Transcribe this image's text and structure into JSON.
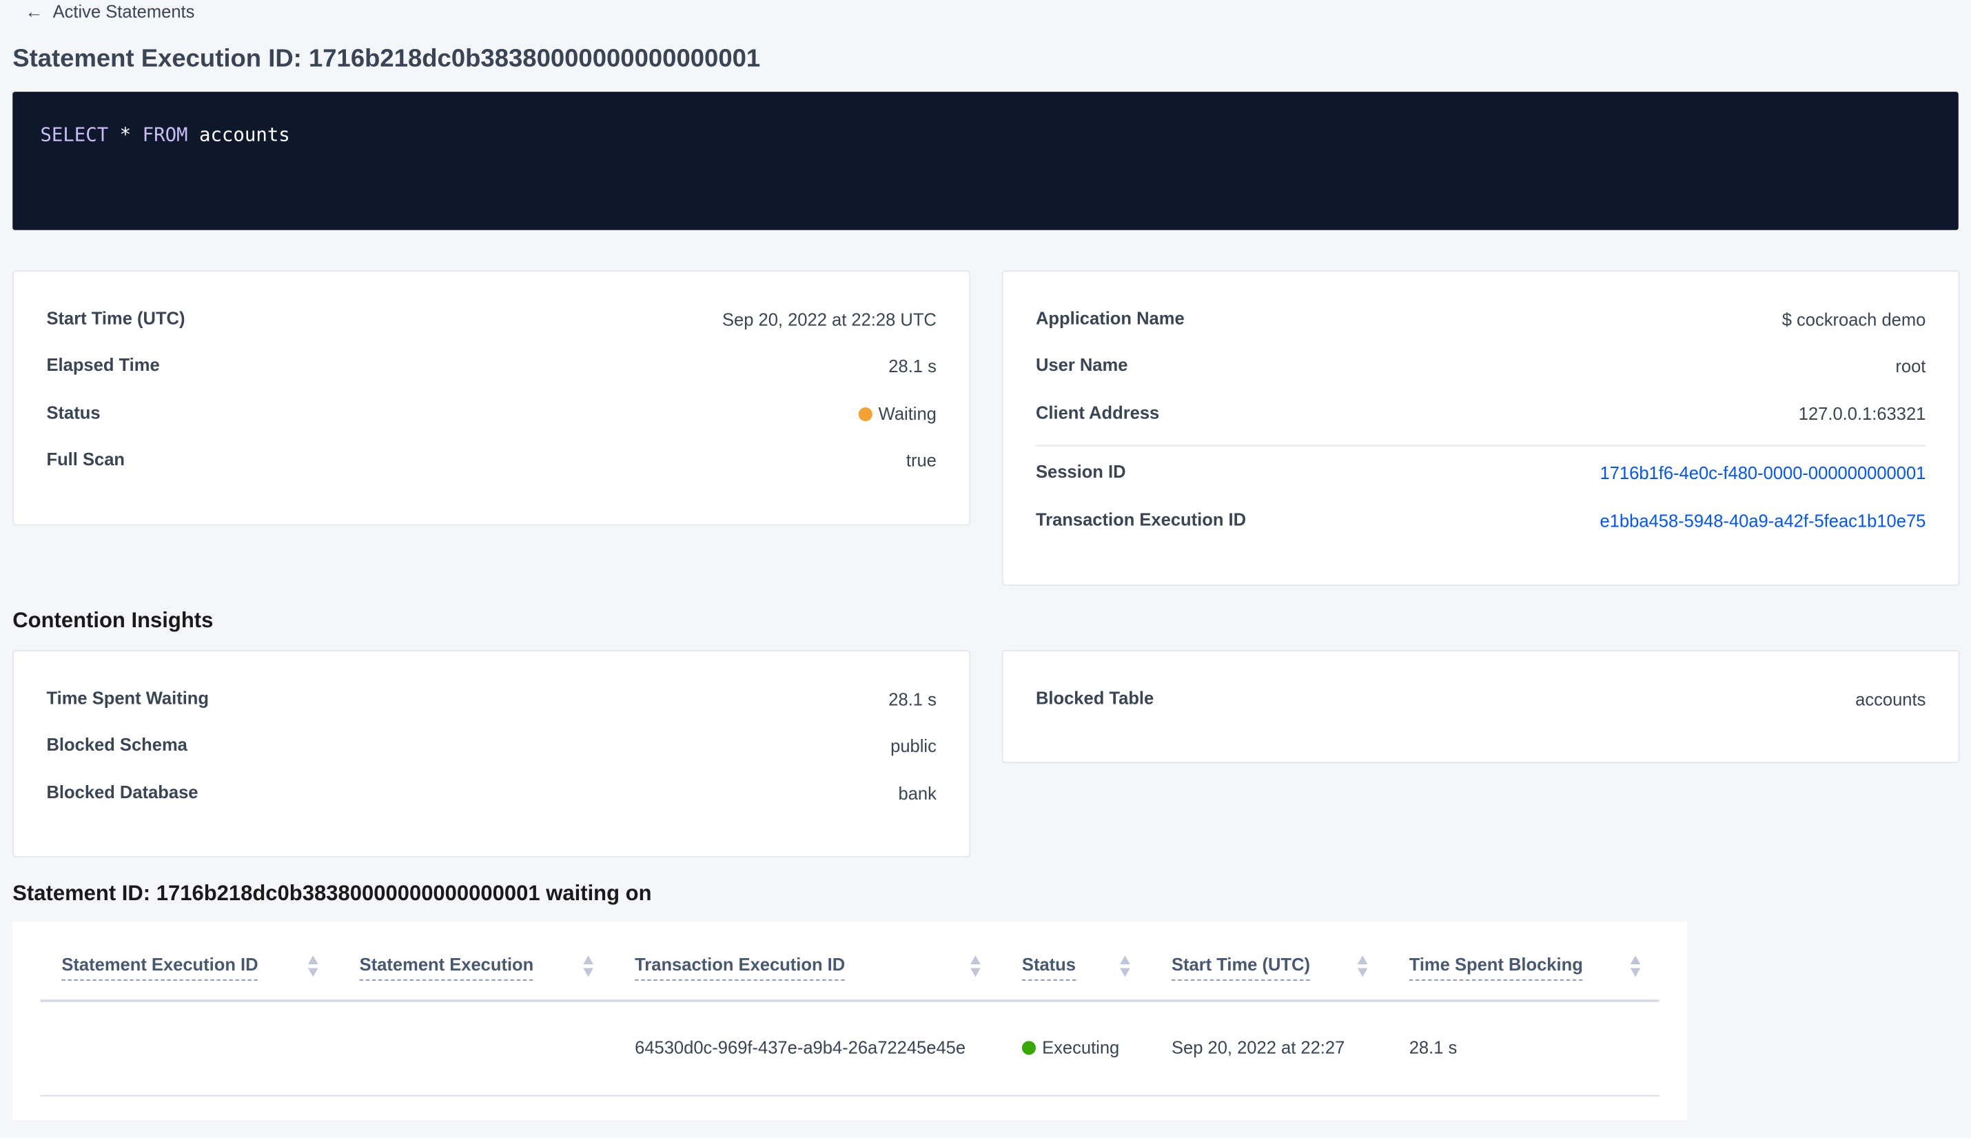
{
  "back_link": {
    "label": "Active Statements",
    "icon": "arrow-left-icon"
  },
  "title": "Statement Execution ID: 1716b218dc0b38380000000000000001",
  "sql": {
    "keyword1": "SELECT",
    "star": "*",
    "keyword2": "FROM",
    "table": "accounts"
  },
  "overview": {
    "left": [
      {
        "label": "Start Time (UTC)",
        "value": "Sep 20, 2022 at 22:28 UTC"
      },
      {
        "label": "Elapsed Time",
        "value": "28.1 s"
      },
      {
        "label": "Status",
        "value": "Waiting",
        "status_color": "#f5a033"
      },
      {
        "label": "Full Scan",
        "value": "true"
      }
    ],
    "right": [
      {
        "label": "Application Name",
        "value": "$ cockroach demo"
      },
      {
        "label": "User Name",
        "value": "root"
      },
      {
        "label": "Client Address",
        "value": "127.0.0.1:63321"
      },
      {
        "label": "Session ID",
        "value": "1716b1f6-4e0c-f480-0000-000000000001"
      },
      {
        "label": "Transaction Execution ID",
        "value": "e1bba458-5948-40a9-a42f-5feac1b10e75"
      }
    ]
  },
  "contention": {
    "heading": "Contention Insights",
    "left": [
      {
        "label": "Time Spent Waiting",
        "value": "28.1 s"
      },
      {
        "label": "Blocked Schema",
        "value": "public"
      },
      {
        "label": "Blocked Database",
        "value": "bank"
      }
    ],
    "right": [
      {
        "label": "Blocked Table",
        "value": "accounts"
      }
    ]
  },
  "waiting": {
    "heading": "Statement ID: 1716b218dc0b38380000000000000001 waiting on",
    "columns": [
      "Statement Execution ID",
      "Statement Execution",
      "Transaction Execution ID",
      "Status",
      "Start Time (UTC)",
      "Time Spent Blocking"
    ],
    "rows": [
      {
        "statement_execution_id": "",
        "statement_execution": "",
        "transaction_execution_id": "64530d0c-969f-437e-a9b4-26a72245e45e",
        "status": "Executing",
        "status_color": "#37a806",
        "start_time": "Sep 20, 2022 at 22:27",
        "time_spent_blocking": "28.1 s"
      }
    ]
  }
}
